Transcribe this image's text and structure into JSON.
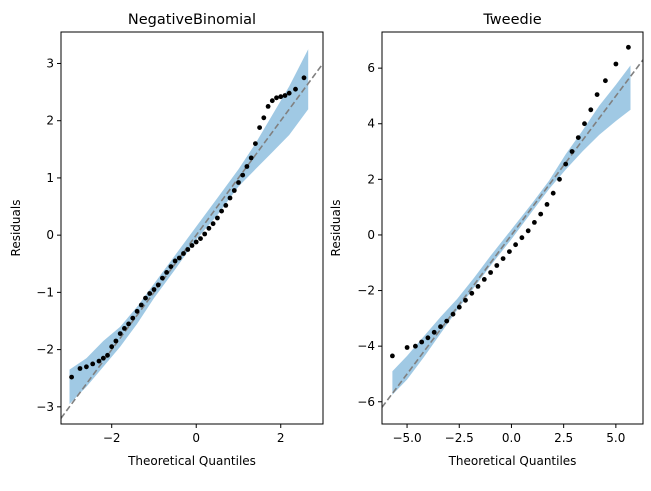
{
  "chart_data": [
    {
      "type": "scatter",
      "title": "NegativeBinomial",
      "xlabel": "Theoretical Quantiles",
      "ylabel": "Residuals",
      "xlim": [
        -3.2,
        3.0
      ],
      "ylim": [
        -3.3,
        3.55
      ],
      "xticks": [
        -2,
        0,
        2
      ],
      "xtick_labels": [
        "−2",
        "0",
        "2"
      ],
      "yticks": [
        -3,
        -2,
        -1,
        0,
        1,
        2,
        3
      ],
      "ytick_labels": [
        "−3",
        "−2",
        "−1",
        "0",
        "1",
        "2",
        "3"
      ],
      "reference_line": {
        "slope": 1.0,
        "intercept": 0.0,
        "style": "dashed",
        "color": "#808080"
      },
      "band_color": "#8fbfdf",
      "point_color": "#000000",
      "band": {
        "x": [
          -3.0,
          -2.6,
          -2.2,
          -1.8,
          -1.4,
          -1.0,
          -0.5,
          0.0,
          0.5,
          1.0,
          1.4,
          1.8,
          2.2,
          2.65
        ],
        "lower": [
          -2.95,
          -2.65,
          -2.3,
          -1.95,
          -1.55,
          -1.1,
          -0.6,
          -0.08,
          0.35,
          0.85,
          1.15,
          1.45,
          1.75,
          2.2
        ],
        "upper": [
          -2.35,
          -2.15,
          -1.85,
          -1.6,
          -1.25,
          -0.85,
          -0.35,
          0.15,
          0.65,
          1.15,
          1.6,
          2.1,
          2.6,
          3.25
        ]
      },
      "points": {
        "x": [
          -2.95,
          -2.75,
          -2.6,
          -2.45,
          -2.3,
          -2.2,
          -2.1,
          -2.0,
          -1.9,
          -1.8,
          -1.7,
          -1.6,
          -1.5,
          -1.4,
          -1.3,
          -1.2,
          -1.1,
          -1.0,
          -0.9,
          -0.8,
          -0.7,
          -0.6,
          -0.5,
          -0.4,
          -0.3,
          -0.2,
          -0.1,
          0.0,
          0.1,
          0.2,
          0.3,
          0.4,
          0.5,
          0.6,
          0.7,
          0.8,
          0.9,
          1.0,
          1.1,
          1.2,
          1.3,
          1.4,
          1.5,
          1.6,
          1.7,
          1.8,
          1.9,
          2.0,
          2.1,
          2.2,
          2.35,
          2.55
        ],
        "y": [
          -2.48,
          -2.33,
          -2.3,
          -2.25,
          -2.2,
          -2.15,
          -2.1,
          -1.95,
          -1.85,
          -1.72,
          -1.63,
          -1.55,
          -1.45,
          -1.33,
          -1.22,
          -1.1,
          -1.02,
          -0.95,
          -0.87,
          -0.75,
          -0.65,
          -0.55,
          -0.45,
          -0.4,
          -0.32,
          -0.25,
          -0.18,
          -0.12,
          -0.06,
          0.02,
          0.12,
          0.2,
          0.3,
          0.42,
          0.52,
          0.65,
          0.78,
          0.92,
          1.05,
          1.2,
          1.35,
          1.6,
          1.88,
          2.05,
          2.25,
          2.35,
          2.4,
          2.42,
          2.44,
          2.48,
          2.55,
          2.75
        ]
      }
    },
    {
      "type": "scatter",
      "title": "Tweedie",
      "xlabel": "Theoretical Quantiles",
      "ylabel": "Residuals",
      "xlim": [
        -6.2,
        6.3
      ],
      "ylim": [
        -6.8,
        7.3
      ],
      "xticks": [
        -5,
        -2.5,
        0,
        2.5,
        5
      ],
      "xtick_labels": [
        "−5.0",
        "−2.5",
        "0.0",
        "2.5",
        "5.0"
      ],
      "yticks": [
        -6,
        -4,
        -2,
        0,
        2,
        4,
        6
      ],
      "ytick_labels": [
        "−6",
        "−4",
        "−2",
        "0",
        "2",
        "4",
        "6"
      ],
      "reference_line": {
        "slope": 1.0,
        "intercept": 0.0,
        "style": "dashed",
        "color": "#808080"
      },
      "band_color": "#8fbfdf",
      "point_color": "#000000",
      "band": {
        "x": [
          -5.7,
          -5.0,
          -4.2,
          -3.4,
          -2.6,
          -1.8,
          -1.0,
          0.0,
          1.0,
          1.8,
          2.6,
          3.4,
          4.2,
          5.0,
          5.7
        ],
        "lower": [
          -5.75,
          -5.2,
          -4.4,
          -3.55,
          -2.7,
          -1.9,
          -1.1,
          -0.15,
          0.85,
          1.65,
          2.35,
          3.0,
          3.6,
          4.1,
          4.5
        ],
        "upper": [
          -4.9,
          -4.35,
          -3.65,
          -2.95,
          -2.3,
          -1.55,
          -0.75,
          0.2,
          1.15,
          1.95,
          2.9,
          3.75,
          4.65,
          5.4,
          6.1
        ]
      },
      "points": {
        "x": [
          -5.7,
          -5.0,
          -4.6,
          -4.3,
          -4.0,
          -3.7,
          -3.4,
          -3.1,
          -2.8,
          -2.5,
          -2.2,
          -1.9,
          -1.6,
          -1.3,
          -1.0,
          -0.7,
          -0.4,
          -0.1,
          0.2,
          0.5,
          0.8,
          1.1,
          1.4,
          1.7,
          2.0,
          2.3,
          2.6,
          2.9,
          3.2,
          3.5,
          3.8,
          4.1,
          4.5,
          5.0,
          5.6
        ],
        "y": [
          -4.35,
          -4.05,
          -4.0,
          -3.85,
          -3.7,
          -3.5,
          -3.3,
          -3.1,
          -2.85,
          -2.6,
          -2.35,
          -2.1,
          -1.85,
          -1.6,
          -1.35,
          -1.1,
          -0.85,
          -0.6,
          -0.35,
          -0.1,
          0.15,
          0.45,
          0.75,
          1.1,
          1.5,
          2.0,
          2.55,
          3.0,
          3.5,
          4.0,
          4.5,
          5.05,
          5.55,
          6.15,
          6.75
        ]
      }
    }
  ]
}
